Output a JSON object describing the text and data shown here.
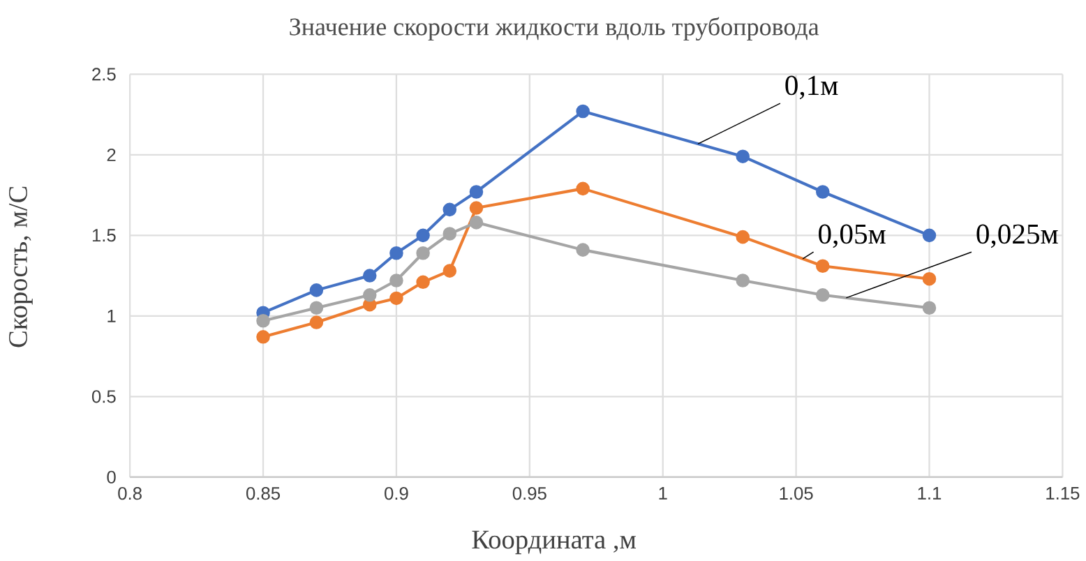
{
  "chart_data": {
    "type": "line",
    "title": "Значение скорости жидкости вдоль  трубопровода",
    "xlabel": "Координата ,м",
    "ylabel": "Скорость, м/С",
    "x": [
      0.85,
      0.87,
      0.89,
      0.9,
      0.91,
      0.92,
      0.93,
      0.97,
      1.03,
      1.06,
      1.1
    ],
    "series": [
      {
        "name": "0,1м",
        "color": "#4472c4",
        "values": [
          1.02,
          1.16,
          1.25,
          1.39,
          1.5,
          1.66,
          1.77,
          2.27,
          1.99,
          1.77,
          1.5
        ]
      },
      {
        "name": "0,05м",
        "color": "#ed7d31",
        "values": [
          0.87,
          0.96,
          1.07,
          1.11,
          1.21,
          1.28,
          1.67,
          1.79,
          1.49,
          1.31,
          1.23
        ]
      },
      {
        "name": "0,025м",
        "color": "#a5a5a5",
        "values": [
          0.97,
          1.05,
          1.13,
          1.22,
          1.39,
          1.51,
          1.58,
          1.41,
          1.22,
          1.13,
          1.05
        ]
      }
    ],
    "xlim": [
      0.8,
      1.15
    ],
    "xticks": [
      0.8,
      0.85,
      0.9,
      0.95,
      1,
      1.05,
      1.1,
      1.15
    ],
    "ylim": [
      0,
      2.5
    ],
    "yticks": [
      0,
      0.5,
      1,
      1.5,
      2,
      2.5
    ],
    "grid": true,
    "marker": "circle",
    "line_style": "solid"
  }
}
